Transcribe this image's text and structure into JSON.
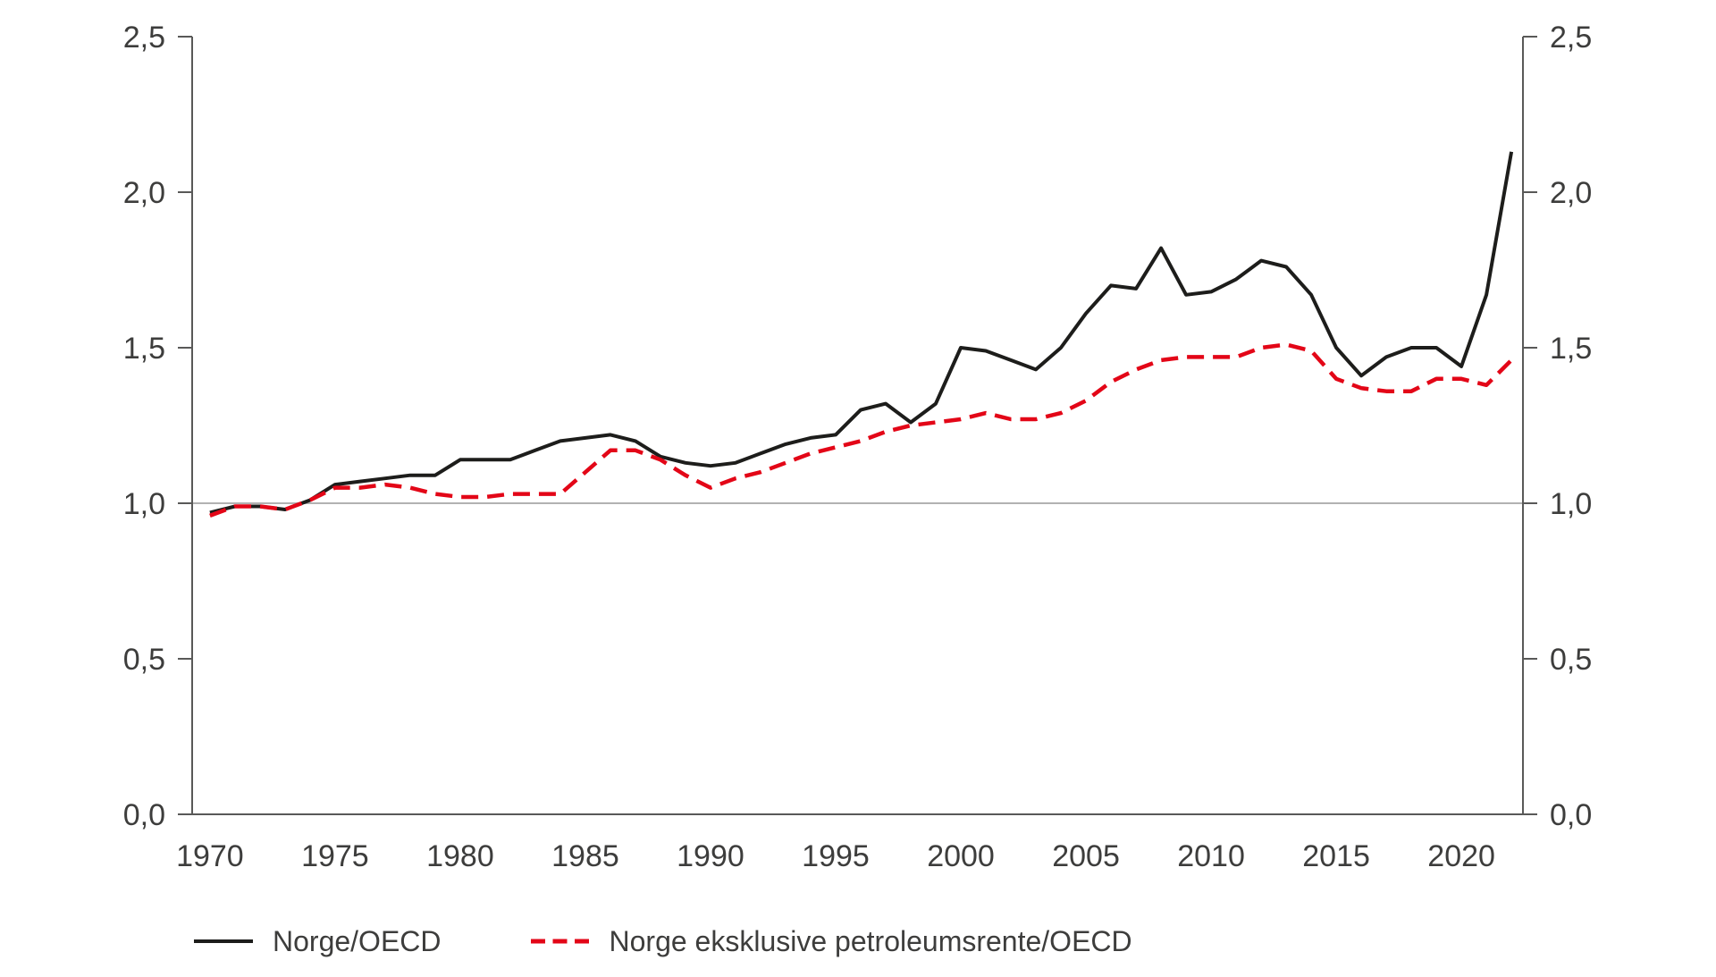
{
  "chart_data": {
    "type": "line",
    "title": "",
    "xlabel": "",
    "ylabel": "",
    "x": [
      1970,
      1971,
      1972,
      1973,
      1974,
      1975,
      1976,
      1977,
      1978,
      1979,
      1980,
      1981,
      1982,
      1983,
      1984,
      1985,
      1986,
      1987,
      1988,
      1989,
      1990,
      1991,
      1992,
      1993,
      1994,
      1995,
      1996,
      1997,
      1998,
      1999,
      2000,
      2001,
      2002,
      2003,
      2004,
      2005,
      2006,
      2007,
      2008,
      2009,
      2010,
      2011,
      2012,
      2013,
      2014,
      2015,
      2016,
      2017,
      2018,
      2019,
      2020,
      2021,
      2022
    ],
    "series": [
      {
        "name": "Norge/OECD",
        "style": "solid",
        "color": "#1d1d1b",
        "values": [
          0.97,
          0.99,
          0.99,
          0.98,
          1.01,
          1.06,
          1.07,
          1.08,
          1.09,
          1.09,
          1.14,
          1.14,
          1.14,
          1.17,
          1.2,
          1.21,
          1.22,
          1.2,
          1.15,
          1.13,
          1.12,
          1.13,
          1.16,
          1.19,
          1.21,
          1.22,
          1.3,
          1.32,
          1.26,
          1.32,
          1.5,
          1.49,
          1.46,
          1.43,
          1.5,
          1.61,
          1.7,
          1.69,
          1.82,
          1.67,
          1.68,
          1.72,
          1.78,
          1.76,
          1.67,
          1.5,
          1.41,
          1.47,
          1.5,
          1.5,
          1.44,
          1.67,
          2.13
        ]
      },
      {
        "name": "Norge eksklusive petroleumsrente/OECD",
        "style": "dashed",
        "color": "#e30617",
        "values": [
          0.96,
          0.99,
          0.99,
          0.98,
          1.01,
          1.05,
          1.05,
          1.06,
          1.05,
          1.03,
          1.02,
          1.02,
          1.03,
          1.03,
          1.03,
          1.1,
          1.17,
          1.17,
          1.14,
          1.09,
          1.05,
          1.08,
          1.1,
          1.13,
          1.16,
          1.18,
          1.2,
          1.23,
          1.25,
          1.26,
          1.27,
          1.29,
          1.27,
          1.27,
          1.29,
          1.33,
          1.39,
          1.43,
          1.46,
          1.47,
          1.47,
          1.47,
          1.5,
          1.51,
          1.49,
          1.4,
          1.37,
          1.36,
          1.36,
          1.4,
          1.4,
          1.38,
          1.46
        ]
      }
    ],
    "ylim": [
      0,
      2.5
    ],
    "xlim": [
      1969.29,
      2022.46
    ],
    "y_ticks": {
      "values": [
        0,
        0.5,
        1.0,
        1.5,
        2.0,
        2.5
      ],
      "labels": [
        "0,0",
        "0,5",
        "1,0",
        "1,5",
        "2,0",
        "2,5"
      ]
    },
    "x_ticks": {
      "values": [
        1970,
        1975,
        1980,
        1985,
        1990,
        1995,
        2000,
        2005,
        2010,
        2015,
        2020
      ],
      "labels": [
        "1970",
        "1975",
        "1980",
        "1985",
        "1990",
        "1995",
        "2000",
        "2005",
        "2010",
        "2015",
        "2020"
      ]
    },
    "gridlines": {
      "y_values": [
        1.0
      ]
    },
    "axes": {
      "left": true,
      "right": true,
      "bottom": true,
      "mirrored_y_labels": true
    },
    "legend_position": "bottom-left",
    "colors": {
      "axis": "#595958",
      "grid": "#b2b2b2",
      "text": "#3d3d3c",
      "background": "#ffffff"
    }
  }
}
